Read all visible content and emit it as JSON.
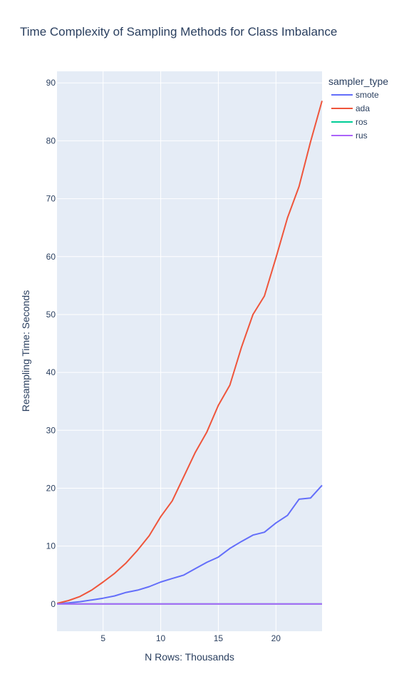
{
  "chart_data": {
    "type": "line",
    "title": "Time Complexity of Sampling Methods for Class Imbalance",
    "xlabel": "N Rows: Thousands",
    "ylabel": "Resampling Time: Seconds",
    "xlim": [
      1,
      24
    ],
    "ylim": [
      -4.7,
      92
    ],
    "xticks": [
      5,
      10,
      15,
      20
    ],
    "yticks": [
      0,
      10,
      20,
      30,
      40,
      50,
      60,
      70,
      80,
      90
    ],
    "grid": true,
    "legend_title": "sampler_type",
    "legend_position": "top-right, outside plot",
    "x": [
      1,
      2,
      3,
      4,
      5,
      6,
      7,
      8,
      9,
      10,
      11,
      12,
      13,
      14,
      15,
      16,
      17,
      18,
      19,
      20,
      21,
      22,
      23,
      24
    ],
    "series": [
      {
        "name": "smote",
        "color": "#636efa",
        "values": [
          0.05,
          0.2,
          0.4,
          0.7,
          1.0,
          1.4,
          2.0,
          2.4,
          3.0,
          3.8,
          4.4,
          5.0,
          6.1,
          7.2,
          8.1,
          9.6,
          10.8,
          11.9,
          12.4,
          14.0,
          15.3,
          18.1,
          18.3,
          20.5
        ]
      },
      {
        "name": "ada",
        "color": "#ef553b",
        "values": [
          0.1,
          0.6,
          1.3,
          2.4,
          3.8,
          5.3,
          7.1,
          9.3,
          11.8,
          15.1,
          17.8,
          22.0,
          26.2,
          29.7,
          34.3,
          37.8,
          44.3,
          50.0,
          53.2,
          59.8,
          66.7,
          72.1,
          79.8,
          86.9
        ]
      },
      {
        "name": "ros",
        "color": "#00cc96",
        "values": [
          0.01,
          0.01,
          0.01,
          0.01,
          0.01,
          0.01,
          0.01,
          0.01,
          0.01,
          0.01,
          0.01,
          0.01,
          0.01,
          0.01,
          0.01,
          0.01,
          0.01,
          0.01,
          0.01,
          0.01,
          0.01,
          0.01,
          0.01,
          0.01
        ]
      },
      {
        "name": "rus",
        "color": "#ab63fa",
        "values": [
          0.0,
          0.0,
          0.0,
          0.0,
          0.0,
          0.0,
          0.0,
          0.0,
          0.0,
          0.0,
          0.0,
          0.0,
          0.0,
          0.0,
          0.0,
          0.0,
          0.0,
          0.0,
          0.0,
          0.0,
          0.0,
          0.0,
          0.0,
          0.0
        ]
      }
    ]
  }
}
